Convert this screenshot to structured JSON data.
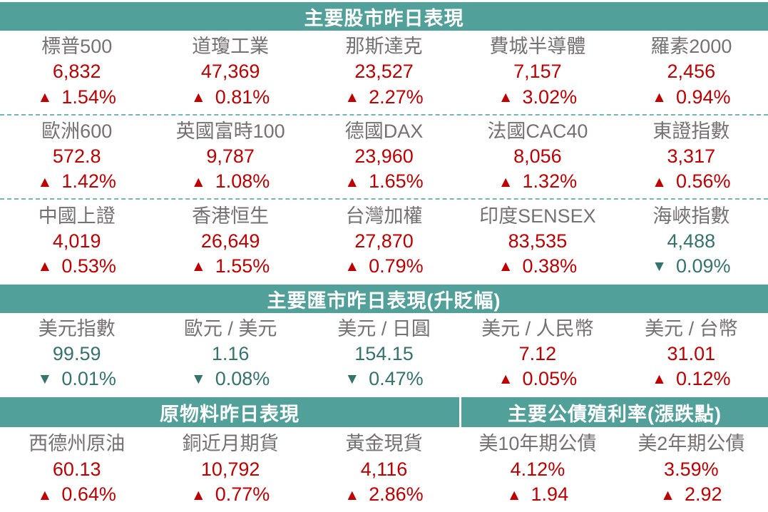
{
  "colors": {
    "header_bg": "#52A09A",
    "header_text": "#FFFFFF",
    "up": "#C00000",
    "down": "#35736E",
    "label": "#767171",
    "dashed_divider": "#74B6B1",
    "background": "#FFFFFF"
  },
  "icons": {
    "up_triangle": "▲",
    "down_triangle": "▼"
  },
  "chart_data": [
    {
      "type": "table",
      "title": "主要股市昨日表現",
      "columns": [
        "name",
        "value",
        "change",
        "direction"
      ],
      "rows": [
        {
          "name": "標普500",
          "value": "6,832",
          "change": "1.54%",
          "direction": "up"
        },
        {
          "name": "道瓊工業",
          "value": "47,369",
          "change": "0.81%",
          "direction": "up"
        },
        {
          "name": "那斯達克",
          "value": "23,527",
          "change": "2.27%",
          "direction": "up"
        },
        {
          "name": "費城半導體",
          "value": "7,157",
          "change": "3.02%",
          "direction": "up"
        },
        {
          "name": "羅素2000",
          "value": "2,456",
          "change": "0.94%",
          "direction": "up"
        },
        {
          "name": "歐洲600",
          "value": "572.8",
          "change": "1.42%",
          "direction": "up"
        },
        {
          "name": "英國富時100",
          "value": "9,787",
          "change": "1.08%",
          "direction": "up"
        },
        {
          "name": "德國DAX",
          "value": "23,960",
          "change": "1.65%",
          "direction": "up"
        },
        {
          "name": "法國CAC40",
          "value": "8,056",
          "change": "1.32%",
          "direction": "up"
        },
        {
          "name": "東證指數",
          "value": "3,317",
          "change": "0.56%",
          "direction": "up"
        },
        {
          "name": "中國上證",
          "value": "4,019",
          "change": "0.53%",
          "direction": "up"
        },
        {
          "name": "香港恒生",
          "value": "26,649",
          "change": "1.55%",
          "direction": "up"
        },
        {
          "name": "台灣加權",
          "value": "27,870",
          "change": "0.79%",
          "direction": "up"
        },
        {
          "name": "印度SENSEX",
          "value": "83,535",
          "change": "0.38%",
          "direction": "up"
        },
        {
          "name": "海峽指數",
          "value": "4,488",
          "change": "0.09%",
          "direction": "down"
        }
      ]
    },
    {
      "type": "table",
      "title": "主要匯市昨日表現(升貶幅)",
      "columns": [
        "name",
        "value",
        "change",
        "direction"
      ],
      "rows": [
        {
          "name": "美元指數",
          "value": "99.59",
          "change": "0.01%",
          "direction": "down"
        },
        {
          "name": "歐元 / 美元",
          "value": "1.16",
          "change": "0.08%",
          "direction": "down"
        },
        {
          "name": "美元 / 日圓",
          "value": "154.15",
          "change": "0.47%",
          "direction": "down"
        },
        {
          "name": "美元 / 人民幣",
          "value": "7.12",
          "change": "0.05%",
          "direction": "up"
        },
        {
          "name": "美元 / 台幣",
          "value": "31.01",
          "change": "0.12%",
          "direction": "up"
        }
      ]
    },
    {
      "type": "table",
      "title": "原物料昨日表現",
      "columns": [
        "name",
        "value",
        "change",
        "direction"
      ],
      "rows": [
        {
          "name": "西德州原油",
          "value": "60.13",
          "change": "0.64%",
          "direction": "up"
        },
        {
          "name": "銅近月期貨",
          "value": "10,792",
          "change": "0.77%",
          "direction": "up"
        },
        {
          "name": "黃金現貨",
          "value": "4,116",
          "change": "2.86%",
          "direction": "up"
        }
      ]
    },
    {
      "type": "table",
      "title": "主要公債殖利率(漲跌點)",
      "columns": [
        "name",
        "value",
        "change",
        "direction"
      ],
      "rows": [
        {
          "name": "美10年期公債",
          "value": "4.12%",
          "change": "1.94",
          "direction": "up"
        },
        {
          "name": "美2年期公債",
          "value": "3.59%",
          "change": "2.92",
          "direction": "up"
        }
      ]
    }
  ]
}
